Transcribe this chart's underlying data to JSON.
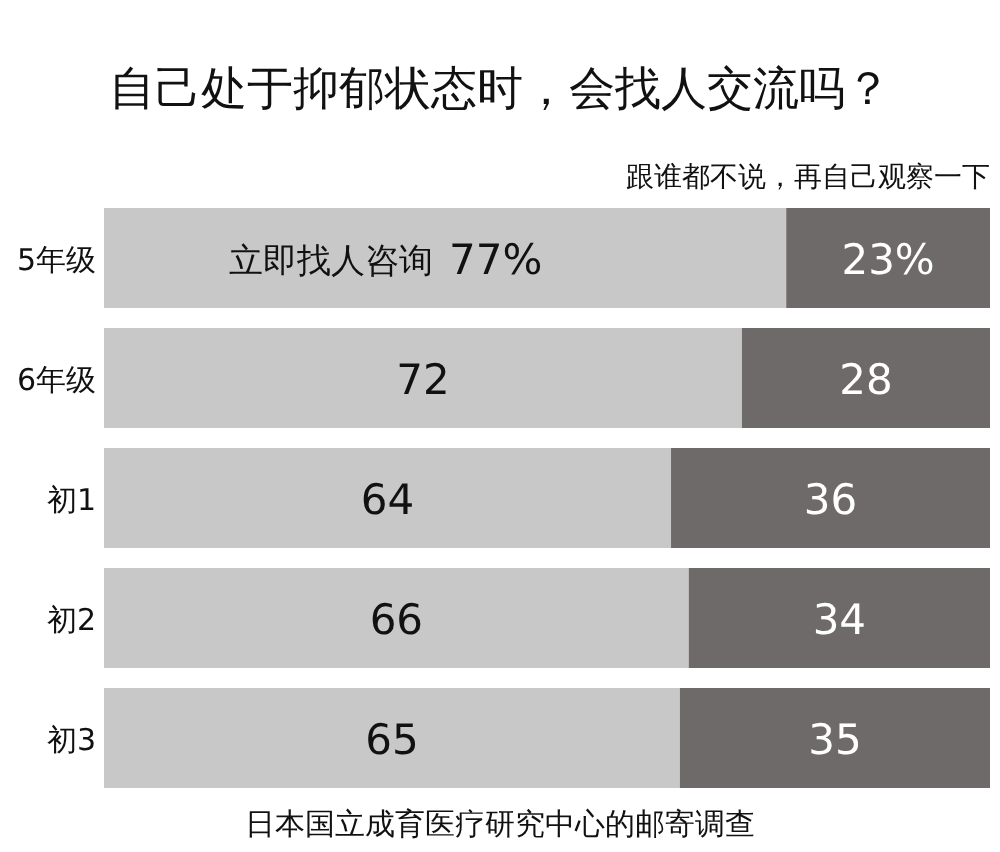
{
  "chart_data": {
    "type": "bar",
    "orientation": "horizontal",
    "stacked": true,
    "title": "自己处于抑郁状态时，会找人交流吗？",
    "categories": [
      "5年级",
      "6年级",
      "初1",
      "初2",
      "初3"
    ],
    "xlim": [
      0,
      100
    ],
    "tick_labels": "y",
    "series": [
      {
        "name": "立即找人咨询",
        "color": "#c8c8c8",
        "values": [
          77,
          72,
          64,
          66,
          65
        ],
        "value_labels": [
          "77%",
          "72",
          "64",
          "66",
          "65"
        ]
      },
      {
        "name": "跟谁都不说，再自己观察一下",
        "color": "#6e6a6a",
        "values": [
          23,
          28,
          36,
          34,
          35
        ],
        "value_labels": [
          "23%",
          "28",
          "36",
          "34",
          "35"
        ]
      }
    ],
    "annotations": [
      "日本国立成育医疗研究中心的邮寄调查"
    ]
  }
}
